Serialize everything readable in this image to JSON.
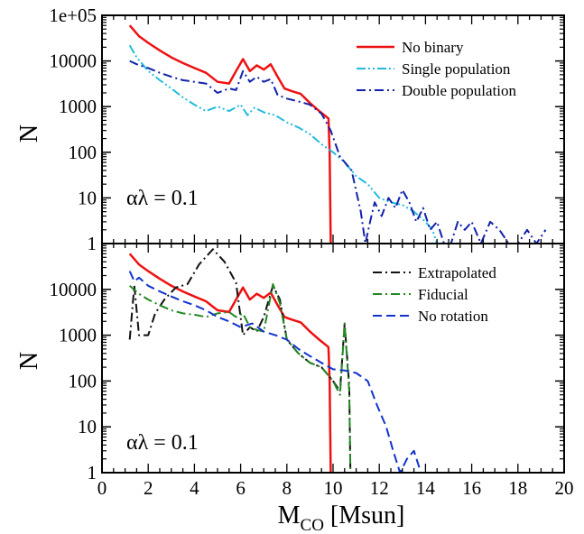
{
  "chart_data": [
    {
      "type": "line",
      "log_y": true,
      "ylim": [
        1,
        100000
      ],
      "xlim": [
        0,
        20
      ],
      "ylabel": "N",
      "xlabel": "",
      "annotation": "αλ = 0.1",
      "yticks": [
        {
          "value": 1,
          "label": "1"
        },
        {
          "value": 10,
          "label": "10"
        },
        {
          "value": 100,
          "label": "100"
        },
        {
          "value": 1000,
          "label": "1000"
        },
        {
          "value": 10000,
          "label": "10000"
        },
        {
          "value": 100000,
          "label": "1e+05"
        }
      ],
      "legend_position": "top-right",
      "series": [
        {
          "name": "No binary",
          "color": "#ee1111",
          "dash": "solid",
          "x": [
            1.2,
            1.6,
            2.0,
            2.5,
            3.0,
            3.5,
            4.0,
            4.5,
            5.0,
            5.5,
            5.8,
            6.1,
            6.4,
            6.7,
            7.0,
            7.3,
            7.6,
            7.9,
            8.2,
            8.6,
            9.0,
            9.4,
            9.8,
            9.85,
            9.9
          ],
          "y": [
            60000,
            35000,
            25000,
            17000,
            12000,
            9000,
            7000,
            5500,
            3500,
            3200,
            6000,
            11000,
            6000,
            8000,
            6500,
            8500,
            4500,
            2500,
            2200,
            1900,
            1200,
            800,
            550,
            100,
            1
          ]
        },
        {
          "name": "Single population",
          "color": "#22bbdd",
          "dash": "dashdotdot",
          "x": [
            1.2,
            1.5,
            2.0,
            2.5,
            3.0,
            3.5,
            4.0,
            4.5,
            5.0,
            5.5,
            6.0,
            6.3,
            6.6,
            7.0,
            7.5,
            8.0,
            8.5,
            9.0,
            9.5,
            10.0,
            10.5,
            11.0,
            11.5,
            12.0,
            12.5,
            13.0,
            13.5,
            14.0,
            14.3,
            14.5,
            14.8
          ],
          "y": [
            22000,
            12000,
            6000,
            3800,
            2500,
            1600,
            1100,
            800,
            1000,
            800,
            1100,
            650,
            950,
            750,
            650,
            450,
            350,
            250,
            150,
            100,
            60,
            30,
            20,
            10,
            8,
            7,
            5,
            3,
            2,
            1,
            1
          ]
        },
        {
          "name": "Double population",
          "color": "#1122aa",
          "dash": "dashdot",
          "x": [
            1.2,
            1.5,
            2.0,
            2.5,
            3.0,
            3.5,
            4.0,
            4.5,
            5.0,
            5.5,
            5.8,
            6.1,
            6.4,
            6.7,
            7.0,
            7.3,
            7.6,
            8.0,
            8.5,
            9.0,
            9.5,
            9.9,
            10.3,
            10.8,
            11.2,
            11.4,
            11.6,
            11.8,
            12.1,
            12.4,
            12.7,
            13.0,
            13.3,
            13.6,
            13.9,
            14.2,
            14.5,
            14.8,
            15.1,
            15.4,
            15.7,
            16.0,
            16.4,
            16.8,
            17.2,
            17.6,
            18.0,
            18.4,
            18.8,
            19.2
          ],
          "y": [
            10000,
            8500,
            7000,
            5500,
            4500,
            3800,
            3500,
            3200,
            2000,
            2500,
            2300,
            6000,
            3500,
            4500,
            3500,
            4000,
            1800,
            1500,
            1300,
            1100,
            700,
            300,
            80,
            40,
            5,
            1,
            3,
            8,
            4,
            10,
            6,
            15,
            8,
            3,
            6,
            2,
            3,
            1,
            1,
            3,
            2,
            3,
            1,
            3,
            2,
            1,
            1,
            2,
            1,
            2
          ]
        }
      ]
    },
    {
      "type": "line",
      "log_y": true,
      "ylim": [
        1,
        100000
      ],
      "xlim": [
        0,
        20
      ],
      "ylabel": "N",
      "xlabel": "M_CO [Msun]",
      "annotation": "αλ = 0.1",
      "xticks": [
        {
          "value": 0,
          "label": "0"
        },
        {
          "value": 2,
          "label": "2"
        },
        {
          "value": 4,
          "label": "4"
        },
        {
          "value": 6,
          "label": "6"
        },
        {
          "value": 8,
          "label": "8"
        },
        {
          "value": 10,
          "label": "10"
        },
        {
          "value": 12,
          "label": "12"
        },
        {
          "value": 14,
          "label": "14"
        },
        {
          "value": 16,
          "label": "16"
        },
        {
          "value": 18,
          "label": "18"
        },
        {
          "value": 20,
          "label": "20"
        }
      ],
      "yticks": [
        {
          "value": 1,
          "label": "1"
        },
        {
          "value": 10,
          "label": "10"
        },
        {
          "value": 100,
          "label": "100"
        },
        {
          "value": 1000,
          "label": "1000"
        },
        {
          "value": 10000,
          "label": "10000"
        }
      ],
      "legend_position": "top-right",
      "series": [
        {
          "color": "#ee1111",
          "dash": "solid",
          "x": [
            1.2,
            1.6,
            2.0,
            2.5,
            3.0,
            3.5,
            4.0,
            4.5,
            5.0,
            5.5,
            5.8,
            6.1,
            6.4,
            6.7,
            7.0,
            7.3,
            7.6,
            7.9,
            8.2,
            8.6,
            9.0,
            9.4,
            9.8,
            9.85,
            9.9
          ],
          "y": [
            60000,
            35000,
            25000,
            17000,
            12000,
            9000,
            7000,
            5500,
            3500,
            3200,
            6000,
            11000,
            6000,
            8000,
            6500,
            8500,
            4500,
            2500,
            2200,
            1900,
            1200,
            800,
            550,
            100,
            1
          ]
        },
        {
          "name": "Extrapolated",
          "color": "#111111",
          "dash": "dashdot",
          "x": [
            1.2,
            1.4,
            1.6,
            2.0,
            2.3,
            2.7,
            3.2,
            3.7,
            4.2,
            4.8,
            5.3,
            5.8,
            6.1,
            6.4,
            6.7,
            7.0,
            7.4,
            7.7,
            8.0,
            8.5,
            9.0,
            9.5,
            10.0,
            10.3,
            10.5,
            10.7,
            10.75
          ],
          "y": [
            800,
            12000,
            1000,
            1000,
            3000,
            6000,
            11000,
            13000,
            35000,
            75000,
            40000,
            14000,
            1000,
            1500,
            1200,
            2500,
            12000,
            6000,
            800,
            400,
            250,
            200,
            100,
            60,
            1800,
            80,
            1
          ]
        },
        {
          "name": "Fiducial",
          "color": "#228822",
          "dash": "dashdot",
          "x": [
            1.2,
            1.6,
            2.0,
            2.5,
            3.0,
            3.5,
            4.0,
            4.5,
            5.0,
            5.5,
            5.8,
            6.1,
            6.4,
            6.7,
            7.0,
            7.4,
            7.7,
            8.0,
            8.5,
            9.0,
            9.5,
            10.0,
            10.3,
            10.5,
            10.7,
            10.75
          ],
          "y": [
            12000,
            8000,
            6000,
            4500,
            3500,
            3000,
            2800,
            2500,
            3000,
            3200,
            2500,
            3000,
            1500,
            1300,
            1200,
            13000,
            5000,
            800,
            400,
            250,
            200,
            100,
            50,
            1800,
            60,
            1
          ]
        },
        {
          "name": "No rotation",
          "color": "#1133cc",
          "dash": "dashed",
          "x": [
            1.2,
            1.4,
            1.6,
            2.0,
            2.5,
            3.0,
            3.5,
            4.0,
            4.5,
            5.0,
            5.5,
            6.0,
            6.5,
            7.0,
            7.5,
            8.0,
            8.5,
            9.0,
            9.5,
            10.0,
            10.5,
            11.0,
            11.5,
            11.9,
            12.3,
            12.6,
            12.9,
            13.2,
            13.5,
            13.8,
            14.0
          ],
          "y": [
            25000,
            15000,
            18000,
            12000,
            9000,
            7000,
            5500,
            4500,
            3500,
            2500,
            2000,
            1500,
            1800,
            1200,
            1000,
            800,
            500,
            350,
            250,
            180,
            170,
            150,
            100,
            30,
            10,
            3,
            1,
            2,
            3,
            1,
            1
          ]
        }
      ]
    }
  ]
}
